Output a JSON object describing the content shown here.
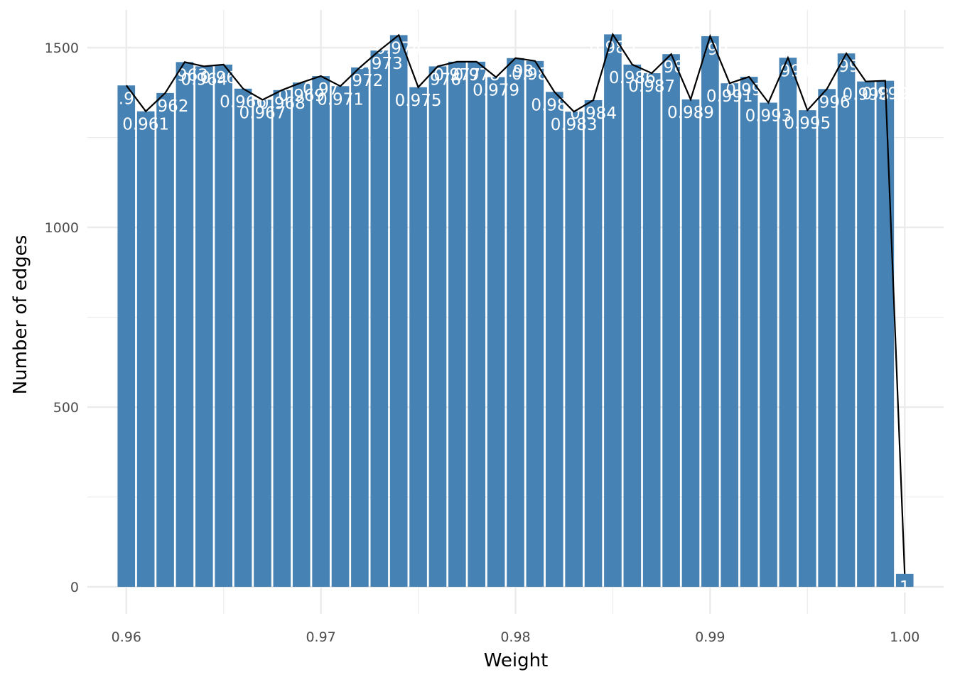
{
  "chart_data": {
    "type": "bar",
    "xlabel": "Weight",
    "ylabel": "Number of edges",
    "xlim": [
      0.958,
      1.002
    ],
    "ylim": [
      -75,
      1605
    ],
    "x_ticks": [
      0.96,
      0.97,
      0.98,
      0.99,
      1.0
    ],
    "x_tick_labels": [
      "0.96",
      "0.97",
      "0.98",
      "0.99",
      "1.00"
    ],
    "y_ticks": [
      0,
      500,
      1000,
      1500
    ],
    "y_tick_labels": [
      "0",
      "500",
      "1000",
      "1500"
    ],
    "grid": true,
    "bar_color": "#4682B4",
    "line_color": "#000000",
    "label_color": "#FFFFFF",
    "bars": [
      {
        "label": "0.96",
        "x": 0.96,
        "y": 1395
      },
      {
        "label": "0.961",
        "x": 0.961,
        "y": 1323
      },
      {
        "label": "0.962",
        "x": 0.962,
        "y": 1374
      },
      {
        "label": "0.963",
        "x": 0.963,
        "y": 1460
      },
      {
        "label": "0.964",
        "x": 0.964,
        "y": 1448
      },
      {
        "label": "0.965",
        "x": 0.965,
        "y": 1453
      },
      {
        "label": "0.966",
        "x": 0.966,
        "y": 1386
      },
      {
        "label": "0.967",
        "x": 0.967,
        "y": 1355
      },
      {
        "label": "0.968",
        "x": 0.968,
        "y": 1382
      },
      {
        "label": "0.969",
        "x": 0.969,
        "y": 1403
      },
      {
        "label": "0.97",
        "x": 0.97,
        "y": 1421
      },
      {
        "label": "0.971",
        "x": 0.971,
        "y": 1393
      },
      {
        "label": "0.972",
        "x": 0.972,
        "y": 1445
      },
      {
        "label": "0.973",
        "x": 0.973,
        "y": 1492
      },
      {
        "label": "0.974",
        "x": 0.974,
        "y": 1535
      },
      {
        "label": "0.975",
        "x": 0.975,
        "y": 1390
      },
      {
        "label": "0.976",
        "x": 0.976,
        "y": 1448
      },
      {
        "label": "0.977",
        "x": 0.977,
        "y": 1461
      },
      {
        "label": "0.978",
        "x": 0.978,
        "y": 1461
      },
      {
        "label": "0.979",
        "x": 0.979,
        "y": 1418
      },
      {
        "label": "0.98",
        "x": 0.98,
        "y": 1471
      },
      {
        "label": "0.981",
        "x": 0.981,
        "y": 1463
      },
      {
        "label": "0.982",
        "x": 0.982,
        "y": 1377
      },
      {
        "label": "0.983",
        "x": 0.983,
        "y": 1322
      },
      {
        "label": "0.984",
        "x": 0.984,
        "y": 1354
      },
      {
        "label": "0.985",
        "x": 0.985,
        "y": 1537
      },
      {
        "label": "0.986",
        "x": 0.986,
        "y": 1453
      },
      {
        "label": "0.987",
        "x": 0.987,
        "y": 1429
      },
      {
        "label": "0.988",
        "x": 0.988,
        "y": 1482
      },
      {
        "label": "0.989",
        "x": 0.989,
        "y": 1356
      },
      {
        "label": "0.99",
        "x": 0.99,
        "y": 1532
      },
      {
        "label": "0.991",
        "x": 0.991,
        "y": 1401
      },
      {
        "label": "0.992",
        "x": 0.992,
        "y": 1419
      },
      {
        "label": "0.993",
        "x": 0.993,
        "y": 1347
      },
      {
        "label": "0.994",
        "x": 0.994,
        "y": 1472
      },
      {
        "label": "0.995",
        "x": 0.995,
        "y": 1326
      },
      {
        "label": "0.996",
        "x": 0.996,
        "y": 1385
      },
      {
        "label": "0.997",
        "x": 0.997,
        "y": 1484
      },
      {
        "label": "0.998",
        "x": 0.998,
        "y": 1406
      },
      {
        "label": "0.999",
        "x": 0.999,
        "y": 1408
      },
      {
        "label": "1",
        "x": 1.0,
        "y": 36
      }
    ]
  }
}
